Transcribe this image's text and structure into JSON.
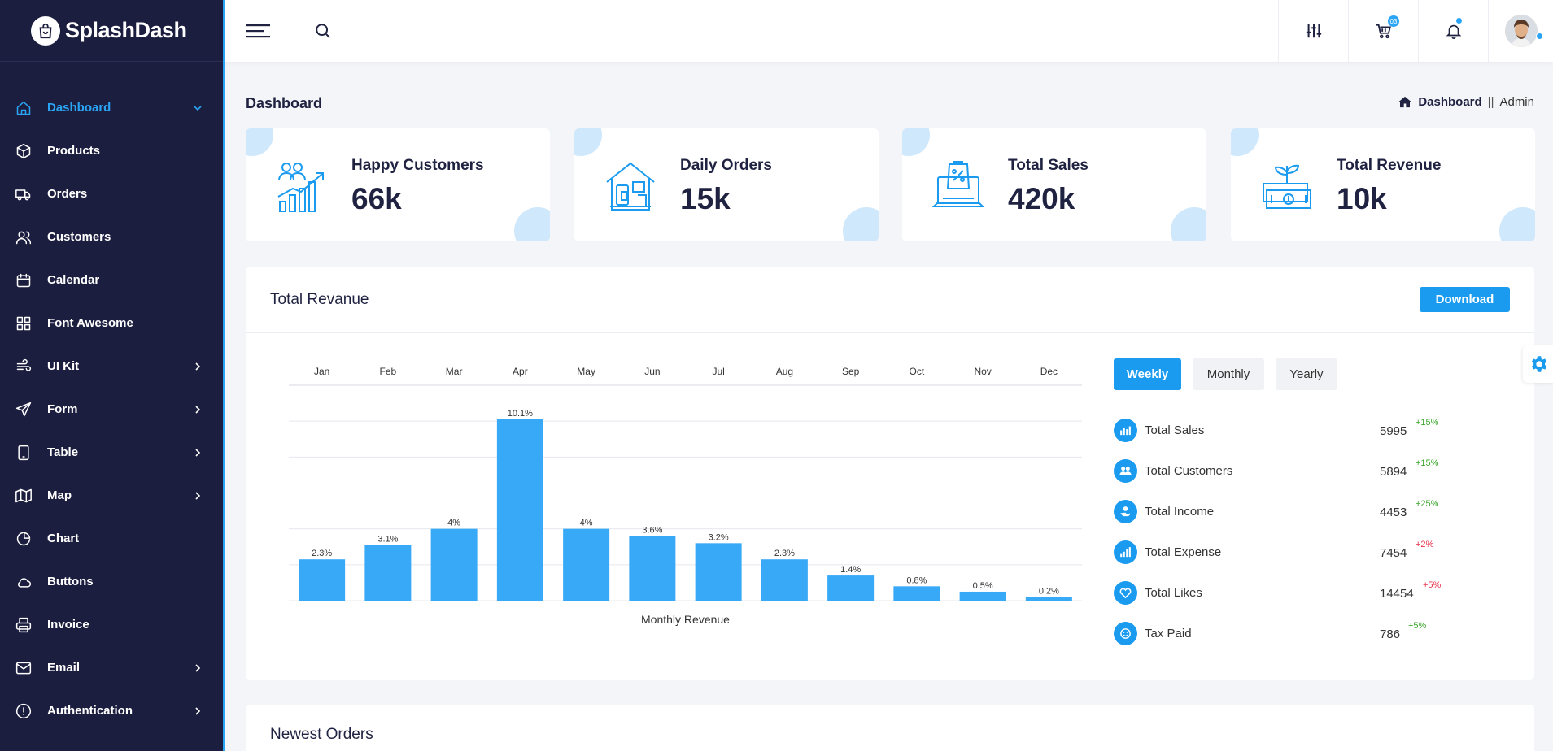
{
  "brand": {
    "name": "SplashDash"
  },
  "sidebar": {
    "items": [
      {
        "label": "Dashboard",
        "icon": "home-icon",
        "active": true,
        "chevron": "down"
      },
      {
        "label": "Products",
        "icon": "box-icon",
        "chevron": ""
      },
      {
        "label": "Orders",
        "icon": "truck-icon",
        "chevron": ""
      },
      {
        "label": "Customers",
        "icon": "users-icon",
        "chevron": ""
      },
      {
        "label": "Calendar",
        "icon": "calendar-icon",
        "chevron": ""
      },
      {
        "label": "Font Awesome",
        "icon": "grid-icon",
        "chevron": ""
      },
      {
        "label": "UI Kit",
        "icon": "wind-icon",
        "chevron": "right"
      },
      {
        "label": "Form",
        "icon": "send-icon",
        "chevron": "right"
      },
      {
        "label": "Table",
        "icon": "tablet-icon",
        "chevron": "right"
      },
      {
        "label": "Map",
        "icon": "map-icon",
        "chevron": "right"
      },
      {
        "label": "Chart",
        "icon": "pie-chart-icon",
        "chevron": ""
      },
      {
        "label": "Buttons",
        "icon": "cloud-icon",
        "chevron": ""
      },
      {
        "label": "Invoice",
        "icon": "printer-icon",
        "chevron": ""
      },
      {
        "label": "Email",
        "icon": "mail-icon",
        "chevron": "right"
      },
      {
        "label": "Authentication",
        "icon": "alert-circle-icon",
        "chevron": "right"
      }
    ]
  },
  "topbar": {
    "cart_count": "03"
  },
  "page": {
    "title": "Dashboard"
  },
  "breadcrumb": {
    "home": "Dashboard",
    "separator": "||",
    "current": "Admin"
  },
  "cards": [
    {
      "title": "Happy Customers",
      "value": "66k",
      "icon": "growth-chart-icon"
    },
    {
      "title": "Daily Orders",
      "value": "15k",
      "icon": "store-icon"
    },
    {
      "title": "Total Sales",
      "value": "420k",
      "icon": "laptop-bag-icon"
    },
    {
      "title": "Total Revenue",
      "value": "10k",
      "icon": "money-plant-icon"
    }
  ],
  "revenue": {
    "title": "Total Revanue",
    "download_label": "Download",
    "tabs": [
      "Weekly",
      "Monthly",
      "Yearly"
    ],
    "active_tab": "Weekly",
    "stats": [
      {
        "label": "Total Sales",
        "value": "5995",
        "change": "+15%",
        "trend": "up",
        "icon": "bar-chart-icon"
      },
      {
        "label": "Total Customers",
        "value": "5894",
        "change": "+15%",
        "trend": "up",
        "icon": "users-icon"
      },
      {
        "label": "Total Income",
        "value": "4453",
        "change": "+25%",
        "trend": "up",
        "icon": "hand-coin-icon"
      },
      {
        "label": "Total Expense",
        "value": "7454",
        "change": "+2%",
        "trend": "down",
        "icon": "signal-icon"
      },
      {
        "label": "Total Likes",
        "value": "14454",
        "change": "+5%",
        "trend": "down",
        "icon": "heart-icon"
      },
      {
        "label": "Tax Paid",
        "value": "786",
        "change": "+5%",
        "trend": "up",
        "icon": "smile-icon"
      }
    ]
  },
  "chart_data": {
    "type": "bar",
    "categories": [
      "Jan",
      "Feb",
      "Mar",
      "Apr",
      "May",
      "Jun",
      "Jul",
      "Aug",
      "Sep",
      "Oct",
      "Nov",
      "Dec"
    ],
    "values": [
      2.3,
      3.1,
      4,
      10.1,
      4,
      3.6,
      3.2,
      2.3,
      1.4,
      0.8,
      0.5,
      0.2
    ],
    "value_labels": [
      "2.3%",
      "3.1%",
      "4%",
      "10.1%",
      "4%",
      "3.6%",
      "3.2%",
      "2.3%",
      "1.4%",
      "0.8%",
      "0.5%",
      "0.2%"
    ],
    "xlabel": "Monthly Revenue",
    "ylim": [
      0,
      12
    ],
    "grid": true,
    "xaxis_position": "top",
    "color": "#38a9f7"
  },
  "orders": {
    "title": "Newest Orders"
  }
}
